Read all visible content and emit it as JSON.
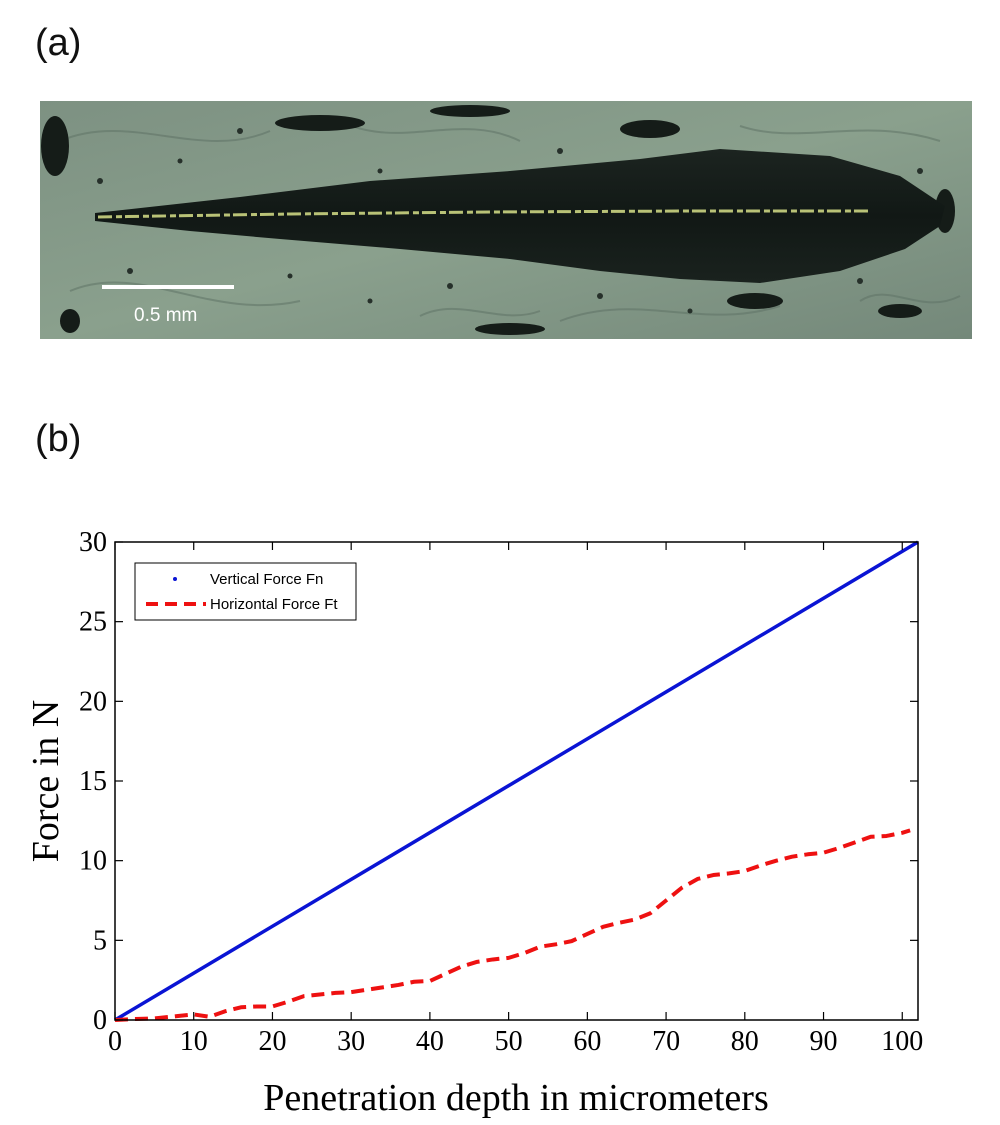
{
  "panel_a": {
    "label": "(a)",
    "scale_bar_text": "0.5 mm"
  },
  "panel_b": {
    "label": "(b)"
  },
  "chart_data": {
    "type": "line",
    "title": "",
    "xlabel": "Penetration depth in micrometers",
    "ylabel": "Force in N",
    "xlim": [
      0,
      102
    ],
    "ylim": [
      0,
      30
    ],
    "xticks": [
      0,
      10,
      20,
      30,
      40,
      50,
      60,
      70,
      80,
      90,
      100
    ],
    "yticks": [
      0,
      5,
      10,
      15,
      20,
      25,
      30
    ],
    "grid": false,
    "legend_position": "top-left",
    "series": [
      {
        "name": "Vertical Force Fn",
        "color": "#0a14d4",
        "style": "solid",
        "legend_marker": "dot",
        "x": [
          0,
          102
        ],
        "y": [
          0,
          30
        ]
      },
      {
        "name": "Horizontal Force Ft",
        "color": "#ee1111",
        "style": "dashed",
        "x": [
          0,
          2,
          5,
          8,
          10,
          12,
          14,
          16,
          18,
          20,
          22,
          24,
          26,
          28,
          30,
          32,
          34,
          36,
          38,
          40,
          42,
          44,
          46,
          48,
          50,
          52,
          54,
          56,
          58,
          60,
          62,
          64,
          66,
          68,
          70,
          72,
          74,
          76,
          78,
          80,
          82,
          84,
          86,
          88,
          90,
          92,
          94,
          96,
          98,
          100,
          101
        ],
        "y": [
          0,
          0.05,
          0.1,
          0.25,
          0.35,
          0.2,
          0.55,
          0.8,
          0.85,
          0.85,
          1.15,
          1.5,
          1.6,
          1.7,
          1.75,
          1.9,
          2.05,
          2.2,
          2.4,
          2.45,
          2.9,
          3.35,
          3.65,
          3.8,
          3.9,
          4.2,
          4.6,
          4.75,
          4.95,
          5.4,
          5.85,
          6.1,
          6.3,
          6.7,
          7.5,
          8.3,
          8.85,
          9.1,
          9.2,
          9.35,
          9.7,
          10.0,
          10.25,
          10.4,
          10.5,
          10.8,
          11.15,
          11.5,
          11.55,
          11.75,
          11.9
        ]
      }
    ]
  }
}
